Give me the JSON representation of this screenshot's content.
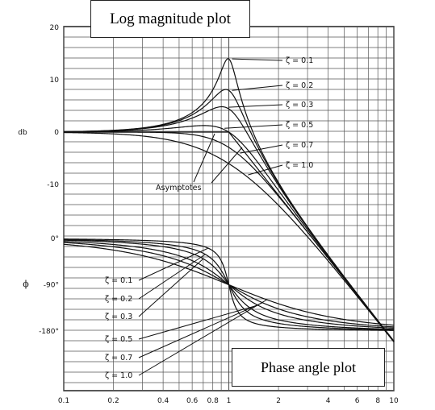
{
  "title_boxes": {
    "magnitude": "Log magnitude plot",
    "phase": "Phase angle plot"
  },
  "chart_data": [
    {
      "type": "line",
      "name": "magnitude",
      "ylabel": "db",
      "xscale": "log",
      "xlim": [
        0.1,
        10
      ],
      "ylim": [
        -20,
        20
      ],
      "grid": true,
      "x_ticks": [
        0.1,
        0.2,
        0.4,
        0.6,
        0.8,
        1,
        2,
        4,
        6,
        8,
        10
      ],
      "x_tick_labels": [
        "0.1",
        "0.2",
        "0.4",
        "0.6",
        "0.8",
        "1",
        "2",
        "4",
        "6",
        "8",
        "10"
      ],
      "y_ticks": [
        20,
        10,
        0,
        -10
      ],
      "y_tick_labels": [
        "20",
        "10",
        "0",
        "-10"
      ],
      "series": [
        {
          "name": "ζ = 0.1",
          "zeta": 0.1
        },
        {
          "name": "ζ = 0.2",
          "zeta": 0.2
        },
        {
          "name": "ζ = 0.3",
          "zeta": 0.3
        },
        {
          "name": "ζ = 0.5",
          "zeta": 0.5
        },
        {
          "name": "ζ = 0.7",
          "zeta": 0.7
        },
        {
          "name": "ζ = 1.0",
          "zeta": 1.0
        }
      ],
      "asymptotes": {
        "label": "Asymptotes",
        "segments": [
          [
            [
              0.1,
              0
            ],
            [
              1,
              0
            ]
          ],
          [
            [
              1,
              0
            ],
            [
              10,
              -40
            ]
          ]
        ]
      }
    },
    {
      "type": "line",
      "name": "phase",
      "ylabel": "ϕ",
      "xscale": "log",
      "xlim": [
        0.1,
        10
      ],
      "ylim": [
        -180,
        0
      ],
      "grid": true,
      "y_ticks": [
        0,
        -90,
        -180
      ],
      "y_tick_labels": [
        "0°",
        "-90°",
        "-180°"
      ],
      "series": [
        {
          "name": "ζ = 0.1",
          "zeta": 0.1
        },
        {
          "name": "ζ = 0.2",
          "zeta": 0.2
        },
        {
          "name": "ζ = 0.3",
          "zeta": 0.3
        },
        {
          "name": "ζ = 0.5",
          "zeta": 0.5
        },
        {
          "name": "ζ = 0.7",
          "zeta": 0.7
        },
        {
          "name": "ζ = 1.0",
          "zeta": 1.0
        }
      ]
    }
  ]
}
